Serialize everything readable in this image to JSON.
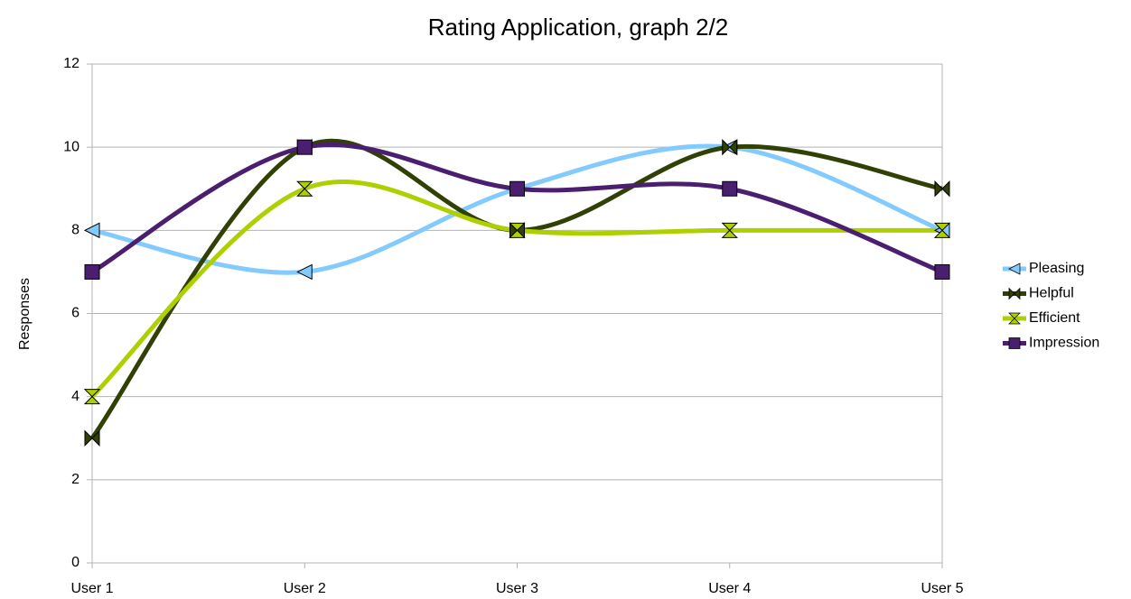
{
  "chart_data": {
    "type": "line",
    "title": "Rating Application, graph 2/2",
    "y_label": "Responses",
    "categories": [
      "User 1",
      "User 2",
      "User 3",
      "User 4",
      "User 5"
    ],
    "series": [
      {
        "name": "Pleasing",
        "color": "#83caff",
        "marker": "triangle-left",
        "values": [
          8,
          7,
          9,
          10,
          8
        ]
      },
      {
        "name": "Helpful",
        "color": "#314004",
        "marker": "bowtie",
        "values": [
          3,
          10,
          8,
          10,
          9
        ]
      },
      {
        "name": "Efficient",
        "color": "#aecf00",
        "marker": "hourglass",
        "values": [
          4,
          9,
          8,
          8,
          8
        ]
      },
      {
        "name": "Impression",
        "color": "#4b1f6f",
        "marker": "square",
        "values": [
          7,
          10,
          9,
          9,
          7
        ]
      }
    ],
    "ylim": [
      0,
      12
    ],
    "yticks": [
      0,
      2,
      4,
      6,
      8,
      10,
      12
    ],
    "grid": true,
    "smooth": true,
    "legend": "right"
  }
}
